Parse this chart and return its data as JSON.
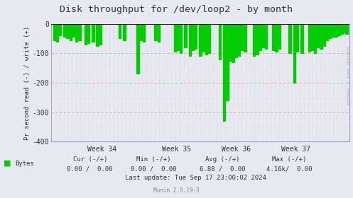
{
  "title": "Disk throughput for /dev/loop2 - by month",
  "ylabel": "Pr second read (-) / write (+)",
  "background_color": "#e8e8f0",
  "plot_bg_color": "#e8e8f0",
  "ylim": [
    -400,
    0
  ],
  "yticks": [
    0,
    -100,
    -200,
    -300,
    -400
  ],
  "grid_color_major": "#ff9999",
  "grid_color_minor": "#ccccdd",
  "week_labels": [
    "Week 34",
    "Week 35",
    "Week 36",
    "Week 37"
  ],
  "line_color": "#00cc00",
  "zero_line_color": "#000000",
  "border_color": "#aaaaaa",
  "right_spine_color": "#9999cc",
  "bottom_spine_color": "#9999cc",
  "footer_text": "Munin 2.0.19-3",
  "last_update": "Last update: Tue Sep 17 23:00:02 2024",
  "cur_label": "Cur (-/+)",
  "min_label": "Min (-/+)",
  "avg_label": "Avg (-/+)",
  "max_label": "Max (-/+)",
  "cur_val": "0.00 /  0.00",
  "min_val": "0.00 /  0.00",
  "avg_val": "6.88 /  0.00",
  "max_val": "4.16k/  0.00",
  "legend_label": "Bytes",
  "right_label": "RRDTOOL / TOBI OETIKER",
  "spike_x": [
    0.01,
    0.02,
    0.03,
    0.045,
    0.055,
    0.065,
    0.075,
    0.085,
    0.095,
    0.115,
    0.125,
    0.14,
    0.155,
    0.165,
    0.23,
    0.245,
    0.29,
    0.3,
    0.31,
    0.35,
    0.36,
    0.415,
    0.425,
    0.435,
    0.45,
    0.465,
    0.475,
    0.485,
    0.5,
    0.51,
    0.52,
    0.53,
    0.565,
    0.58,
    0.59,
    0.6,
    0.61,
    0.62,
    0.63,
    0.64,
    0.65,
    0.68,
    0.69,
    0.7,
    0.71,
    0.72,
    0.745,
    0.755,
    0.765,
    0.8,
    0.815,
    0.825,
    0.84,
    0.865,
    0.875,
    0.885,
    0.895,
    0.905,
    0.915,
    0.925,
    0.935,
    0.945,
    0.955,
    0.965,
    0.975,
    0.985,
    0.99
  ],
  "spike_y": [
    -55,
    -60,
    -40,
    -45,
    -50,
    -55,
    -45,
    -60,
    -55,
    -70,
    -65,
    -60,
    -75,
    -70,
    -50,
    -55,
    -170,
    -55,
    -60,
    -55,
    -60,
    -95,
    -90,
    -100,
    -80,
    -110,
    -90,
    -85,
    -110,
    -95,
    -105,
    -100,
    -120,
    -330,
    -260,
    -125,
    -130,
    -115,
    -110,
    -90,
    -95,
    -110,
    -105,
    -90,
    -80,
    -85,
    -90,
    -95,
    -85,
    -100,
    -200,
    -95,
    -100,
    -95,
    -90,
    -100,
    -80,
    -85,
    -75,
    -55,
    -50,
    -45,
    -45,
    -40,
    -35,
    -30,
    -35
  ]
}
